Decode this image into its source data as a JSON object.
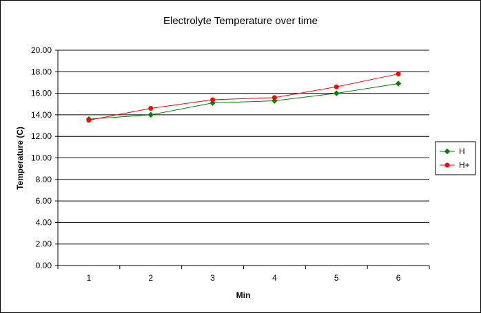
{
  "chart_data": {
    "type": "line",
    "title": "Electrolyte Temperature over time",
    "xlabel": "Min",
    "ylabel": "Temperature (C)",
    "categories": [
      "1",
      "2",
      "3",
      "4",
      "5",
      "6"
    ],
    "ylim": [
      0,
      20
    ],
    "ytick_step": 2,
    "ytick_labels": [
      "0.00",
      "2.00",
      "4.00",
      "6.00",
      "8.00",
      "10.00",
      "12.00",
      "14.00",
      "16.00",
      "18.00",
      "20.00"
    ],
    "grid": "horizontal",
    "legend_position": "right",
    "series": [
      {
        "name": "H",
        "color": "#008000",
        "marker": "diamond",
        "values": [
          13.6,
          14.0,
          15.1,
          15.3,
          16.0,
          16.9
        ]
      },
      {
        "name": "H+",
        "color": "#ff0000",
        "marker": "circle",
        "values": [
          13.5,
          14.6,
          15.4,
          15.6,
          16.6,
          17.8
        ]
      }
    ]
  }
}
